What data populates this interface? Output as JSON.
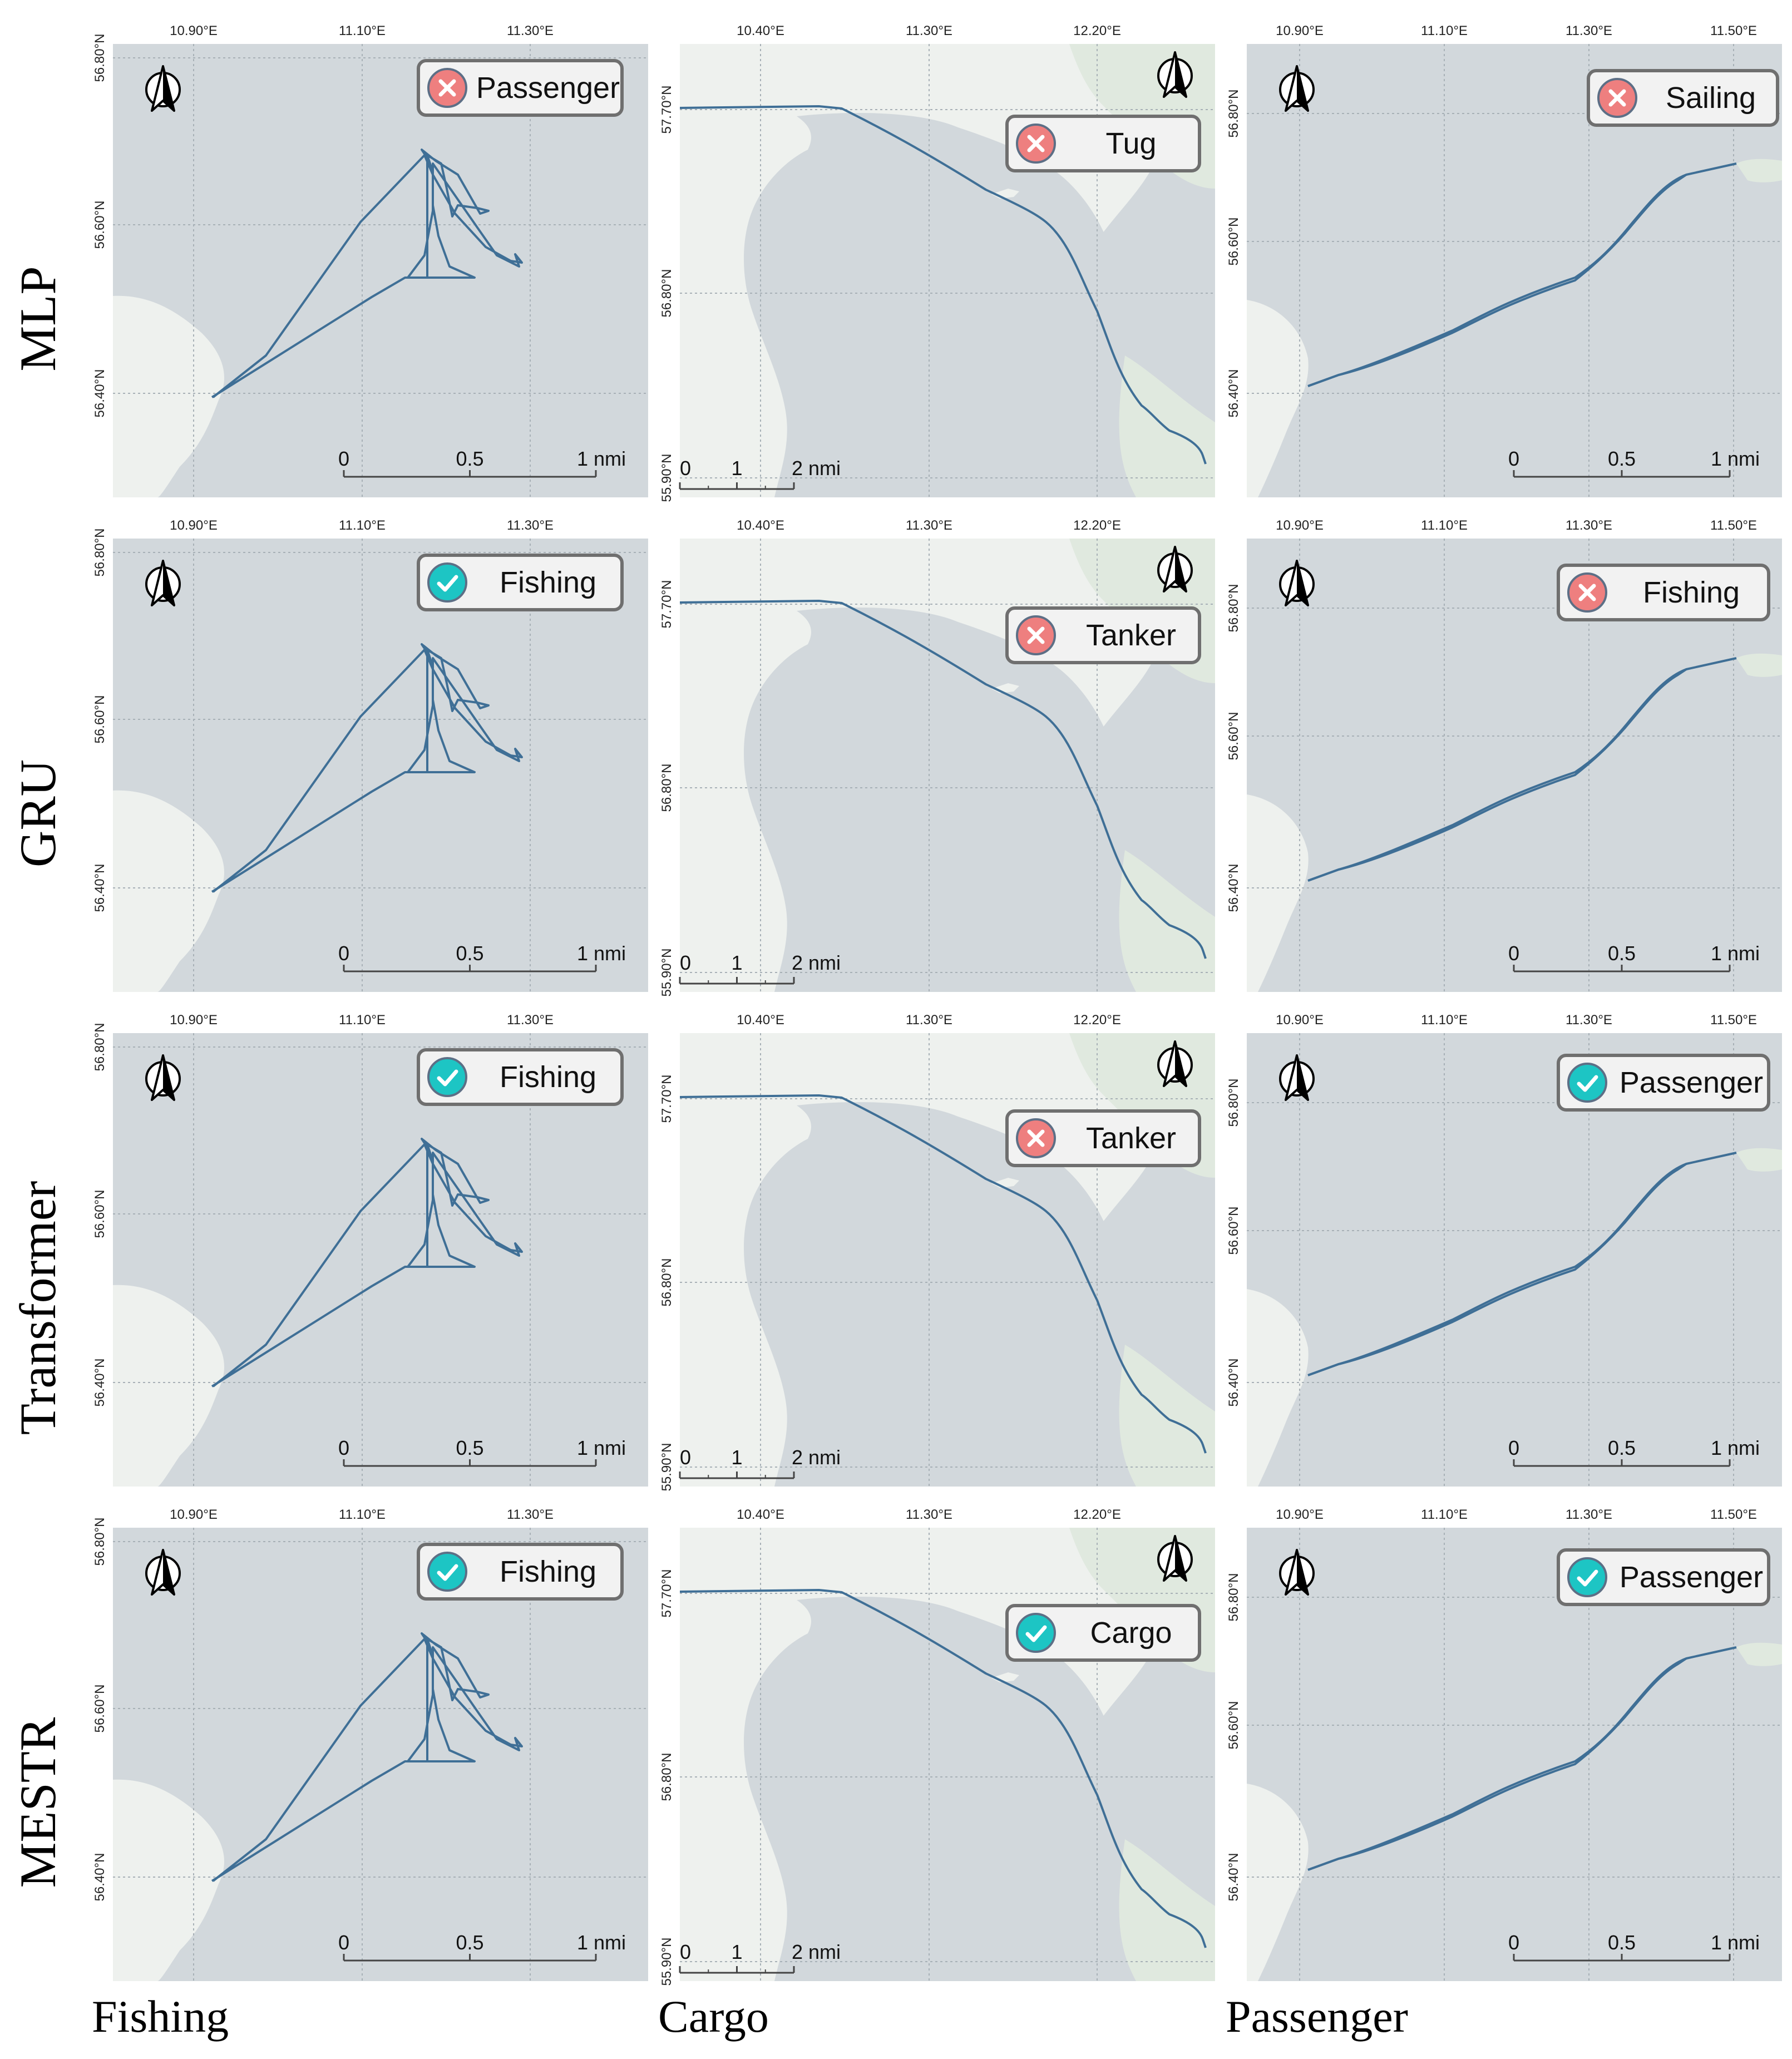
{
  "figure": {
    "row_labels": [
      "MLP",
      "GRU",
      "Transformer",
      "MESTR"
    ],
    "column_labels": [
      "Fishing",
      "Cargo",
      "Passenger"
    ]
  },
  "colors": {
    "sea": "#d2d8dc",
    "land": "#eef1ee",
    "land_green": "#e0e9df",
    "track": "#3f6f96",
    "grid": "#a7b0b6",
    "correct_badge": "#1dc5c4",
    "wrong_badge": "#ee7f7f",
    "label_box": "#f2f2f2",
    "label_border": "#6f6f6f"
  },
  "maps": {
    "fishing": {
      "x_ticks": [
        "10.90°E",
        "11.10°E",
        "11.30°E"
      ],
      "y_ticks": [
        "56.80°N",
        "56.60°N",
        "56.40°N"
      ],
      "scale_labels": [
        "0",
        "0.5",
        "1 nmi"
      ]
    },
    "cargo": {
      "x_ticks": [
        "10.40°E",
        "11.30°E",
        "12.20°E"
      ],
      "y_ticks": [
        "57.70°N",
        "56.80°N",
        "55.90°N"
      ],
      "scale_labels": [
        "0",
        "1",
        "2 nmi"
      ]
    },
    "passenger": {
      "x_ticks": [
        "10.90°E",
        "11.10°E",
        "11.30°E",
        "11.50°E"
      ],
      "y_ticks": [
        "56.80°N",
        "56.60°N",
        "56.40°N"
      ],
      "scale_labels": [
        "0",
        "0.5",
        "1 nmi"
      ]
    }
  },
  "predictions": [
    [
      {
        "label": "Passenger",
        "status": "wrong"
      },
      {
        "label": "Tug",
        "status": "wrong"
      },
      {
        "label": "Sailing",
        "status": "wrong"
      }
    ],
    [
      {
        "label": "Fishing",
        "status": "correct"
      },
      {
        "label": "Tanker",
        "status": "wrong"
      },
      {
        "label": "Fishing",
        "status": "wrong"
      }
    ],
    [
      {
        "label": "Fishing",
        "status": "correct"
      },
      {
        "label": "Tanker",
        "status": "wrong"
      },
      {
        "label": "Passenger",
        "status": "correct"
      }
    ],
    [
      {
        "label": "Fishing",
        "status": "correct"
      },
      {
        "label": "Cargo",
        "status": "correct"
      },
      {
        "label": "Passenger",
        "status": "correct"
      }
    ]
  ]
}
